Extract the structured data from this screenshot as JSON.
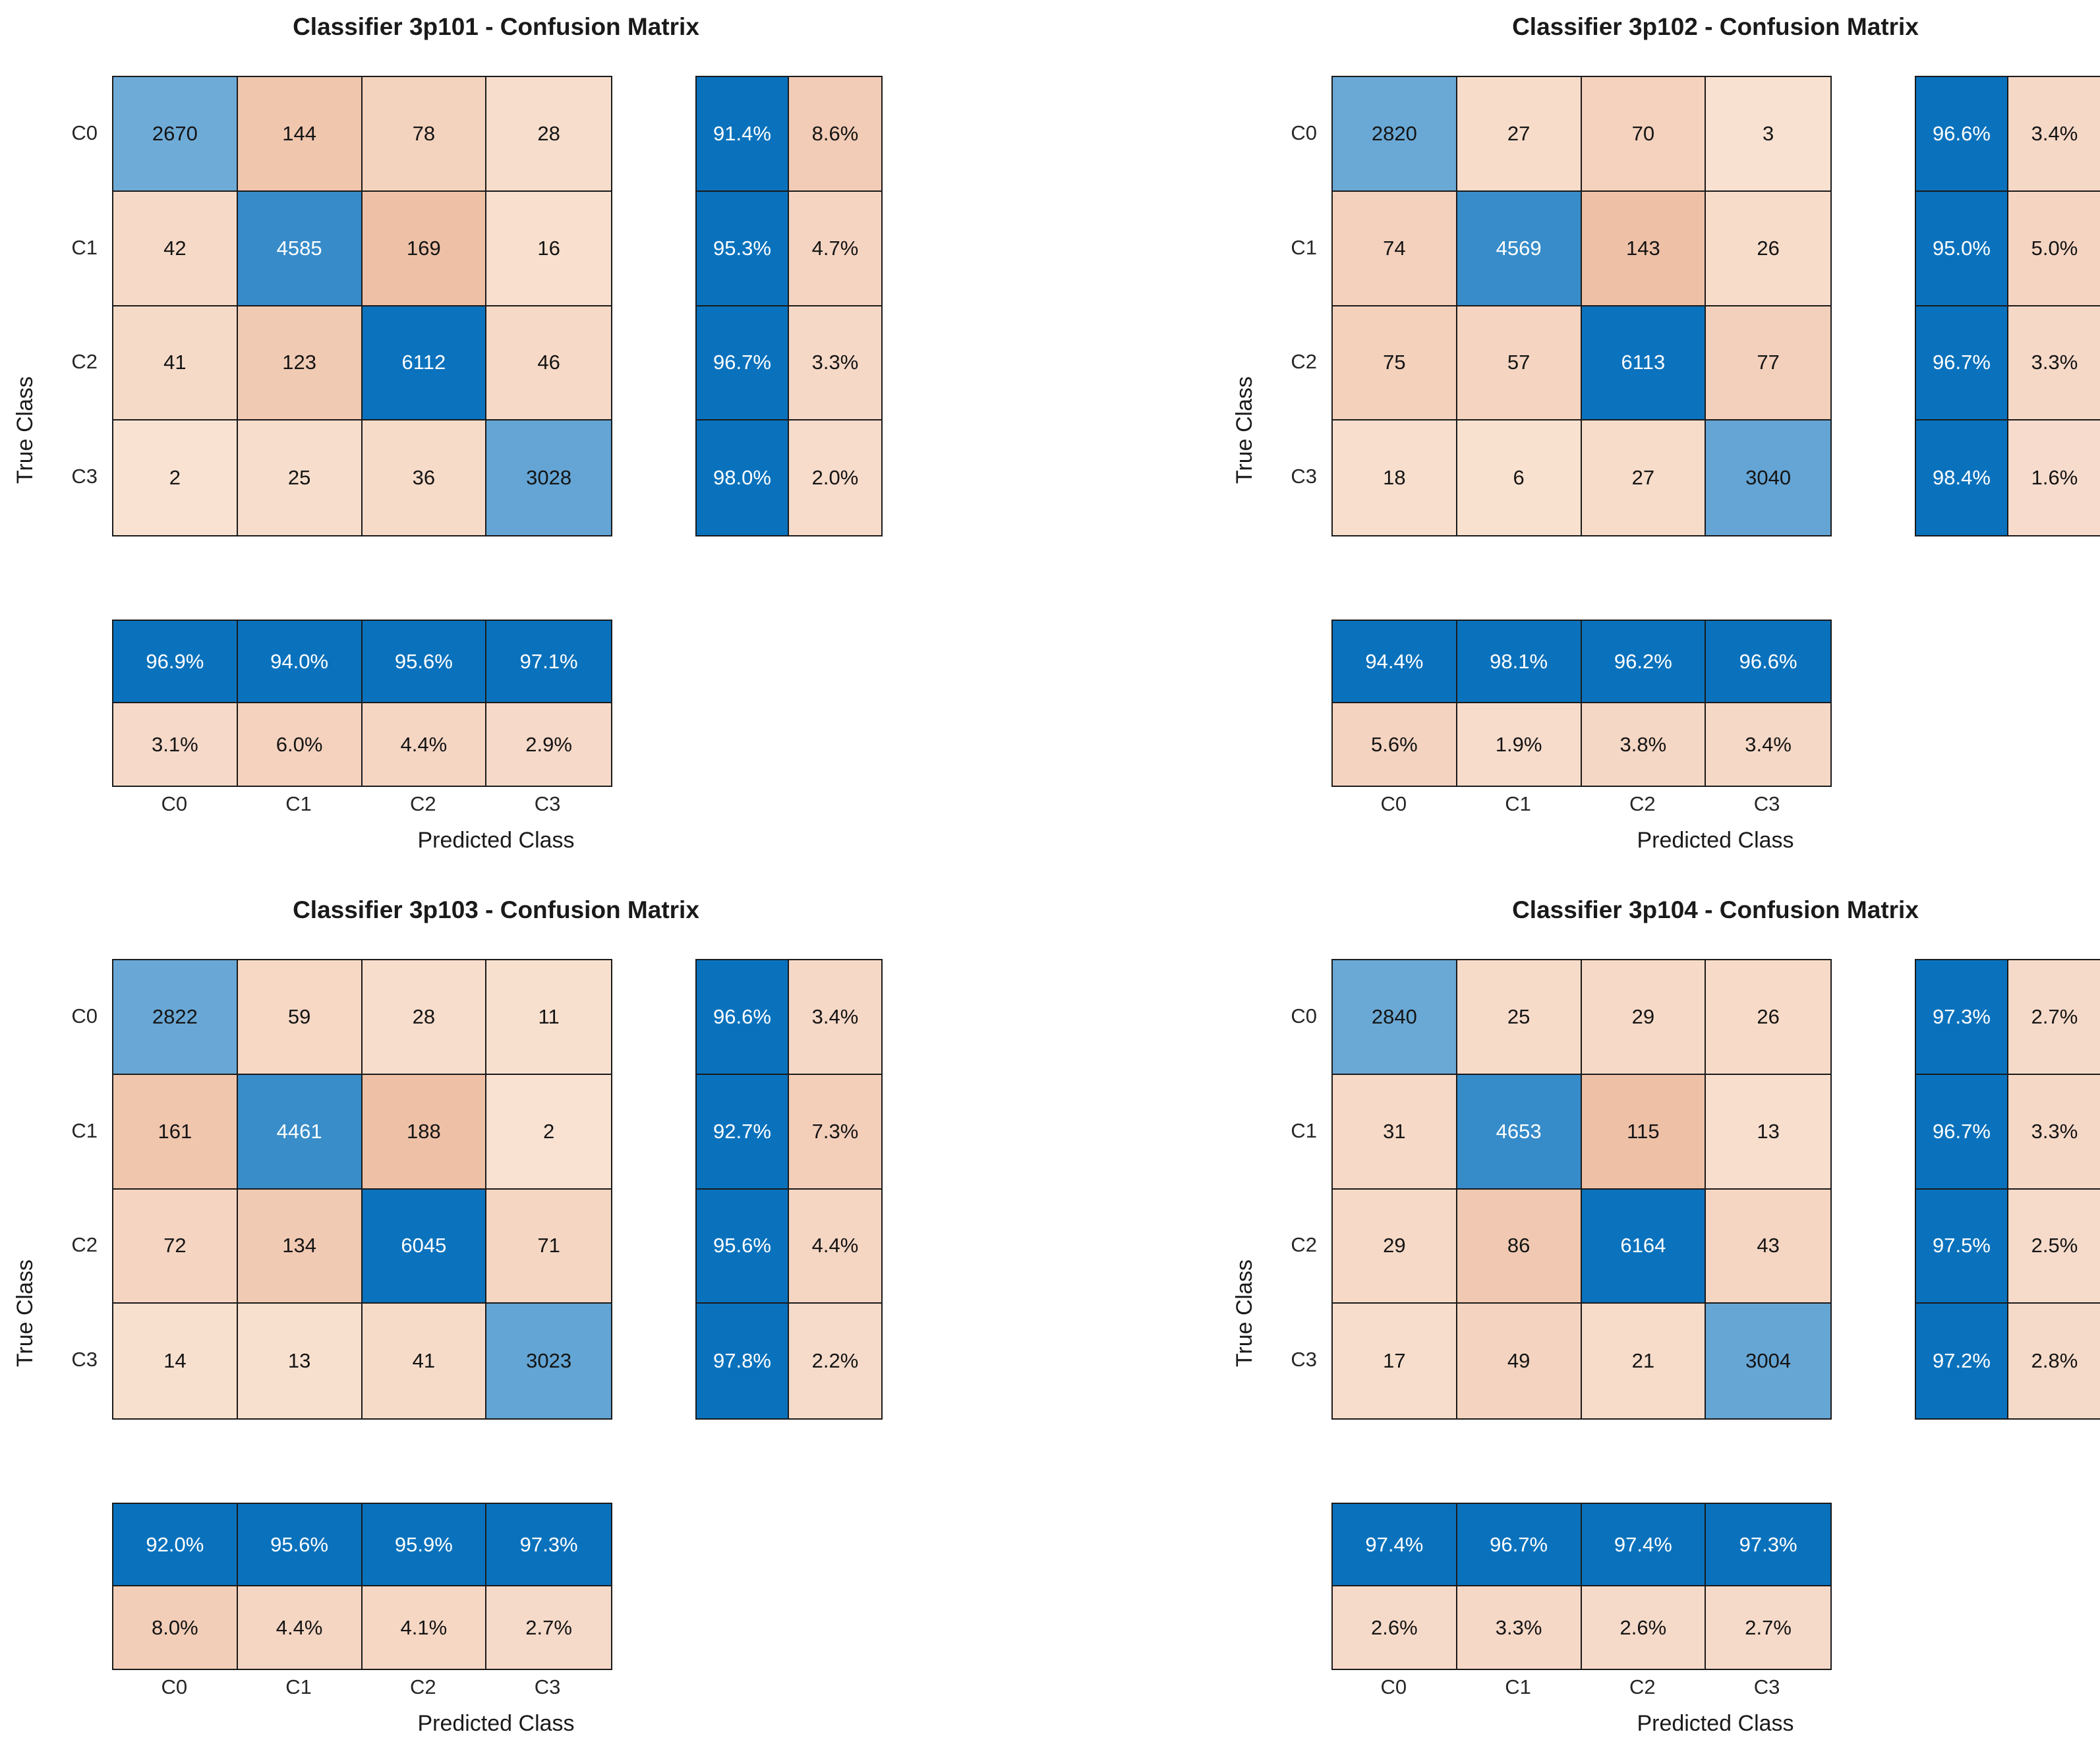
{
  "figure": {
    "background": "#ffffff"
  },
  "axis_labels": {
    "x": "Predicted Class",
    "y": "True Class"
  },
  "classes": [
    "C0",
    "C1",
    "C2",
    "C3"
  ],
  "colors": {
    "summary_blue": "#0a72bd",
    "summary_pink_light": "#f8e0d2",
    "summary_pink_dark": "#f1c9b1",
    "diag_light": "#bcd8ec",
    "diag_dark": "#0b72bd",
    "offdiag_light": "#f9e2d2",
    "offdiag_dark": "#eec1a7",
    "cell_border": "#1a1a1a",
    "text_dark": "#141414",
    "text_light": "#ffffff",
    "tick_text": "#262626",
    "label_text": "#1a1a1a"
  },
  "chart_data": [
    {
      "type": "heatmap",
      "title": "Classifier 3p101 - Confusion Matrix",
      "xlabel": "Predicted Class",
      "ylabel": "True Class",
      "categories": [
        "C0",
        "C1",
        "C2",
        "C3"
      ],
      "matrix": [
        [
          2670,
          144,
          78,
          28
        ],
        [
          42,
          4585,
          169,
          16
        ],
        [
          41,
          123,
          6112,
          46
        ],
        [
          2,
          25,
          36,
          3028
        ]
      ],
      "row_summary": [
        [
          "91.4%",
          "8.6%"
        ],
        [
          "95.3%",
          "4.7%"
        ],
        [
          "96.7%",
          "3.3%"
        ],
        [
          "98.0%",
          "2.0%"
        ]
      ],
      "col_summary": [
        [
          "96.9%",
          "94.0%",
          "95.6%",
          "97.1%"
        ],
        [
          "3.1%",
          "6.0%",
          "4.4%",
          "2.9%"
        ]
      ]
    },
    {
      "type": "heatmap",
      "title": "Classifier 3p102 - Confusion Matrix",
      "xlabel": "Predicted Class",
      "ylabel": "True Class",
      "categories": [
        "C0",
        "C1",
        "C2",
        "C3"
      ],
      "matrix": [
        [
          2820,
          27,
          70,
          3
        ],
        [
          74,
          4569,
          143,
          26
        ],
        [
          75,
          57,
          6113,
          77
        ],
        [
          18,
          6,
          27,
          3040
        ]
      ],
      "row_summary": [
        [
          "96.6%",
          "3.4%"
        ],
        [
          "95.0%",
          "5.0%"
        ],
        [
          "96.7%",
          "3.3%"
        ],
        [
          "98.4%",
          "1.6%"
        ]
      ],
      "col_summary": [
        [
          "94.4%",
          "98.1%",
          "96.2%",
          "96.6%"
        ],
        [
          "5.6%",
          "1.9%",
          "3.8%",
          "3.4%"
        ]
      ]
    },
    {
      "type": "heatmap",
      "title": "Classifier 3p103 - Confusion Matrix",
      "xlabel": "Predicted Class",
      "ylabel": "True Class",
      "categories": [
        "C0",
        "C1",
        "C2",
        "C3"
      ],
      "matrix": [
        [
          2822,
          59,
          28,
          11
        ],
        [
          161,
          4461,
          188,
          2
        ],
        [
          72,
          134,
          6045,
          71
        ],
        [
          14,
          13,
          41,
          3023
        ]
      ],
      "row_summary": [
        [
          "96.6%",
          "3.4%"
        ],
        [
          "92.7%",
          "7.3%"
        ],
        [
          "95.6%",
          "4.4%"
        ],
        [
          "97.8%",
          "2.2%"
        ]
      ],
      "col_summary": [
        [
          "92.0%",
          "95.6%",
          "95.9%",
          "97.3%"
        ],
        [
          "8.0%",
          "4.4%",
          "4.1%",
          "2.7%"
        ]
      ]
    },
    {
      "type": "heatmap",
      "title": "Classifier 3p104 - Confusion Matrix",
      "xlabel": "Predicted Class",
      "ylabel": "True Class",
      "categories": [
        "C0",
        "C1",
        "C2",
        "C3"
      ],
      "matrix": [
        [
          2840,
          25,
          29,
          26
        ],
        [
          31,
          4653,
          115,
          13
        ],
        [
          29,
          86,
          6164,
          43
        ],
        [
          17,
          49,
          21,
          3004
        ]
      ],
      "row_summary": [
        [
          "97.3%",
          "2.7%"
        ],
        [
          "96.7%",
          "3.3%"
        ],
        [
          "97.5%",
          "2.5%"
        ],
        [
          "97.2%",
          "2.8%"
        ]
      ],
      "col_summary": [
        [
          "97.4%",
          "96.7%",
          "97.4%",
          "97.3%"
        ],
        [
          "2.6%",
          "3.3%",
          "2.6%",
          "2.7%"
        ]
      ]
    }
  ]
}
